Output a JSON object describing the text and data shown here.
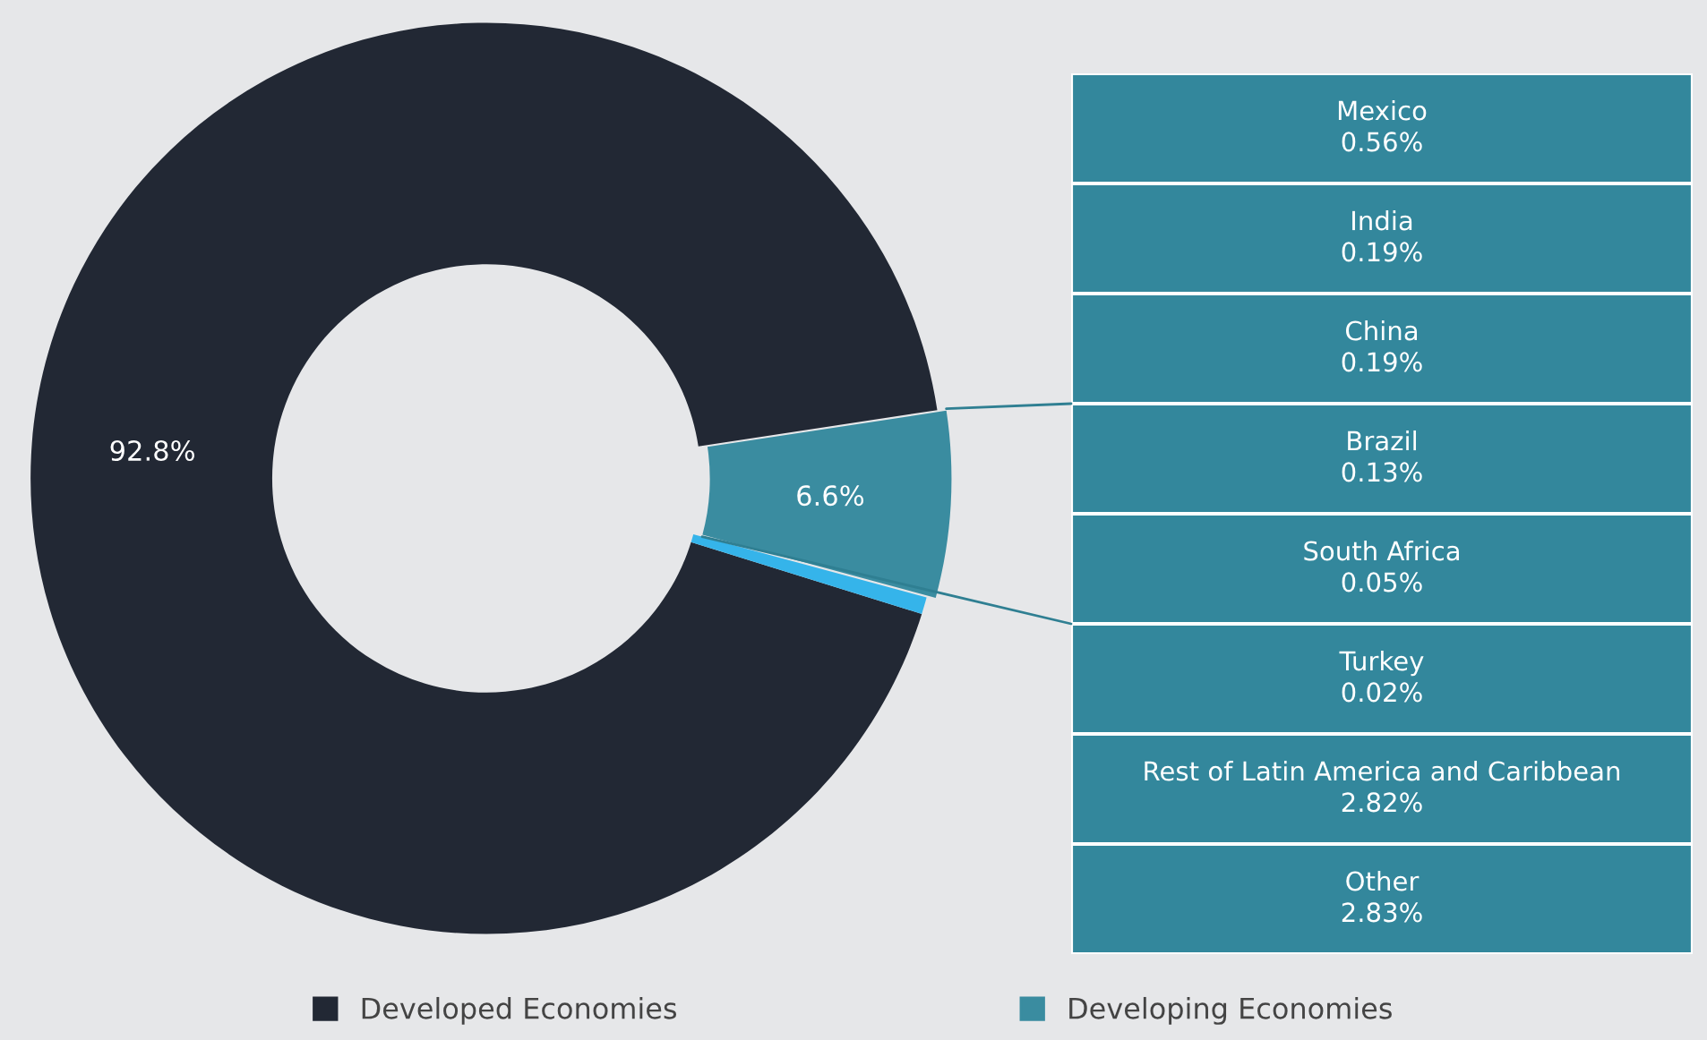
{
  "chart_data": {
    "type": "donut",
    "categories": [
      "Developed Economies",
      "Developing Economies",
      null
    ],
    "values": [
      92.8,
      6.6,
      0.6
    ],
    "colors": [
      "#222834",
      "#3a8ca0",
      "#35b4ea"
    ],
    "value_labels": [
      "92.8%",
      "6.6%",
      null
    ],
    "legend": "bottom",
    "annotations": [
      "Mexico\n0.56%",
      "India\n0.19%",
      "China\n0.19%",
      "Brazil\n0.13%",
      "South Africa\n0.05%",
      "Turkey\n0.02%",
      "Rest of Latin America and Caribbean\n2.82%",
      "Other\n2.83%"
    ]
  }
}
